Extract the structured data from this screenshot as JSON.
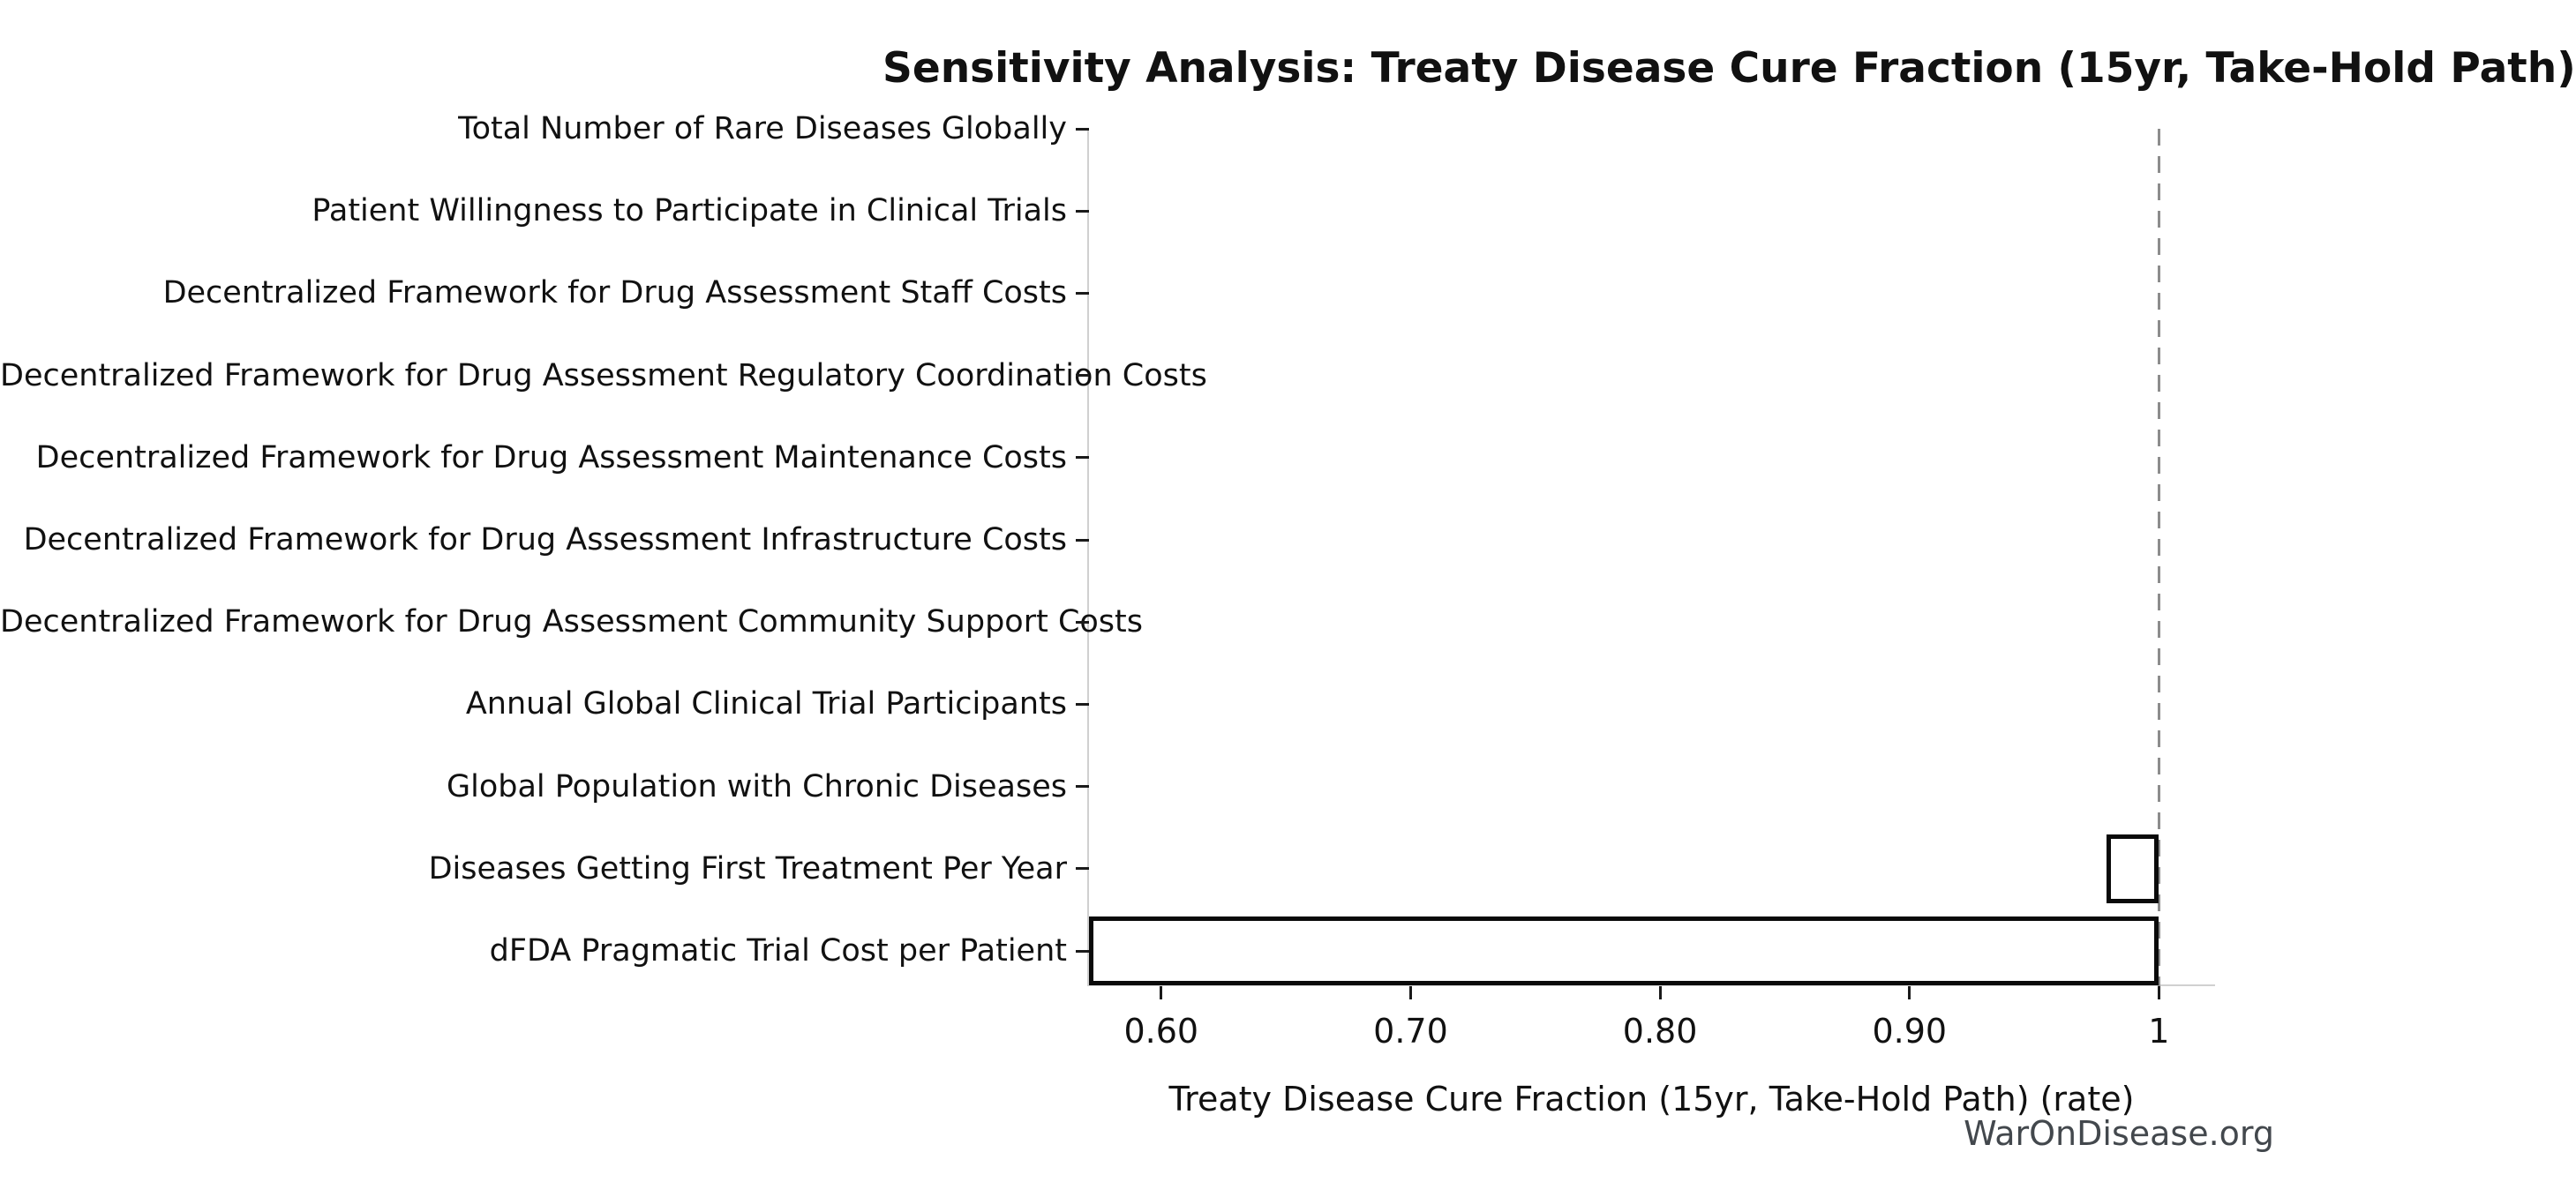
{
  "watermark": "WarOnDisease.org",
  "colors": {
    "background": "#ffffff",
    "text": "#111111",
    "bar_fill": "#ffffff",
    "bar_edge": "#0a0a0a",
    "baseline_dash": "#8c8c8c",
    "spine": "#d0d0d0",
    "tick_mark": "#1a1a1a",
    "watermark": "#43484d"
  },
  "chart_data": {
    "type": "bar",
    "orientation": "horizontal",
    "title": "Sensitivity Analysis: Treaty Disease Cure Fraction (15yr, Take-Hold Path)",
    "xlabel": "Treaty Disease Cure Fraction (15yr, Take-Hold Path) (rate)",
    "baseline": 1.0,
    "xlim": [
      0.5707,
      1.0225
    ],
    "grid": false,
    "legend": false,
    "xticks": [
      {
        "value": 0.6,
        "label": "0.60"
      },
      {
        "value": 0.7,
        "label": "0.70"
      },
      {
        "value": 0.8,
        "label": "0.80"
      },
      {
        "value": 0.9,
        "label": "0.90"
      },
      {
        "value": 1.0,
        "label": "1"
      }
    ],
    "categories": [
      "Total Number of Rare Diseases Globally",
      "Patient Willingness to Participate in Clinical Trials",
      "Decentralized Framework for Drug Assessment Staff Costs",
      "Decentralized Framework for Drug Assessment Regulatory Coordination Costs",
      "Decentralized Framework for Drug Assessment Maintenance Costs",
      "Decentralized Framework for Drug Assessment Infrastructure Costs",
      "Decentralized Framework for Drug Assessment Community Support Costs",
      "Annual Global Clinical Trial Participants",
      "Global Population with Chronic Diseases",
      "Diseases Getting First Treatment Per Year",
      "dFDA Pragmatic Trial Cost per Patient"
    ],
    "values": [
      {
        "low": 1.0,
        "high": 1.0
      },
      {
        "low": 1.0,
        "high": 1.0
      },
      {
        "low": 1.0,
        "high": 1.0
      },
      {
        "low": 1.0,
        "high": 1.0
      },
      {
        "low": 1.0,
        "high": 1.0
      },
      {
        "low": 1.0,
        "high": 1.0
      },
      {
        "low": 1.0,
        "high": 1.0
      },
      {
        "low": 1.0,
        "high": 1.0
      },
      {
        "low": 1.0,
        "high": 1.0
      },
      {
        "low": 0.979,
        "high": 1.0
      },
      {
        "low": 0.571,
        "high": 1.0
      }
    ]
  }
}
